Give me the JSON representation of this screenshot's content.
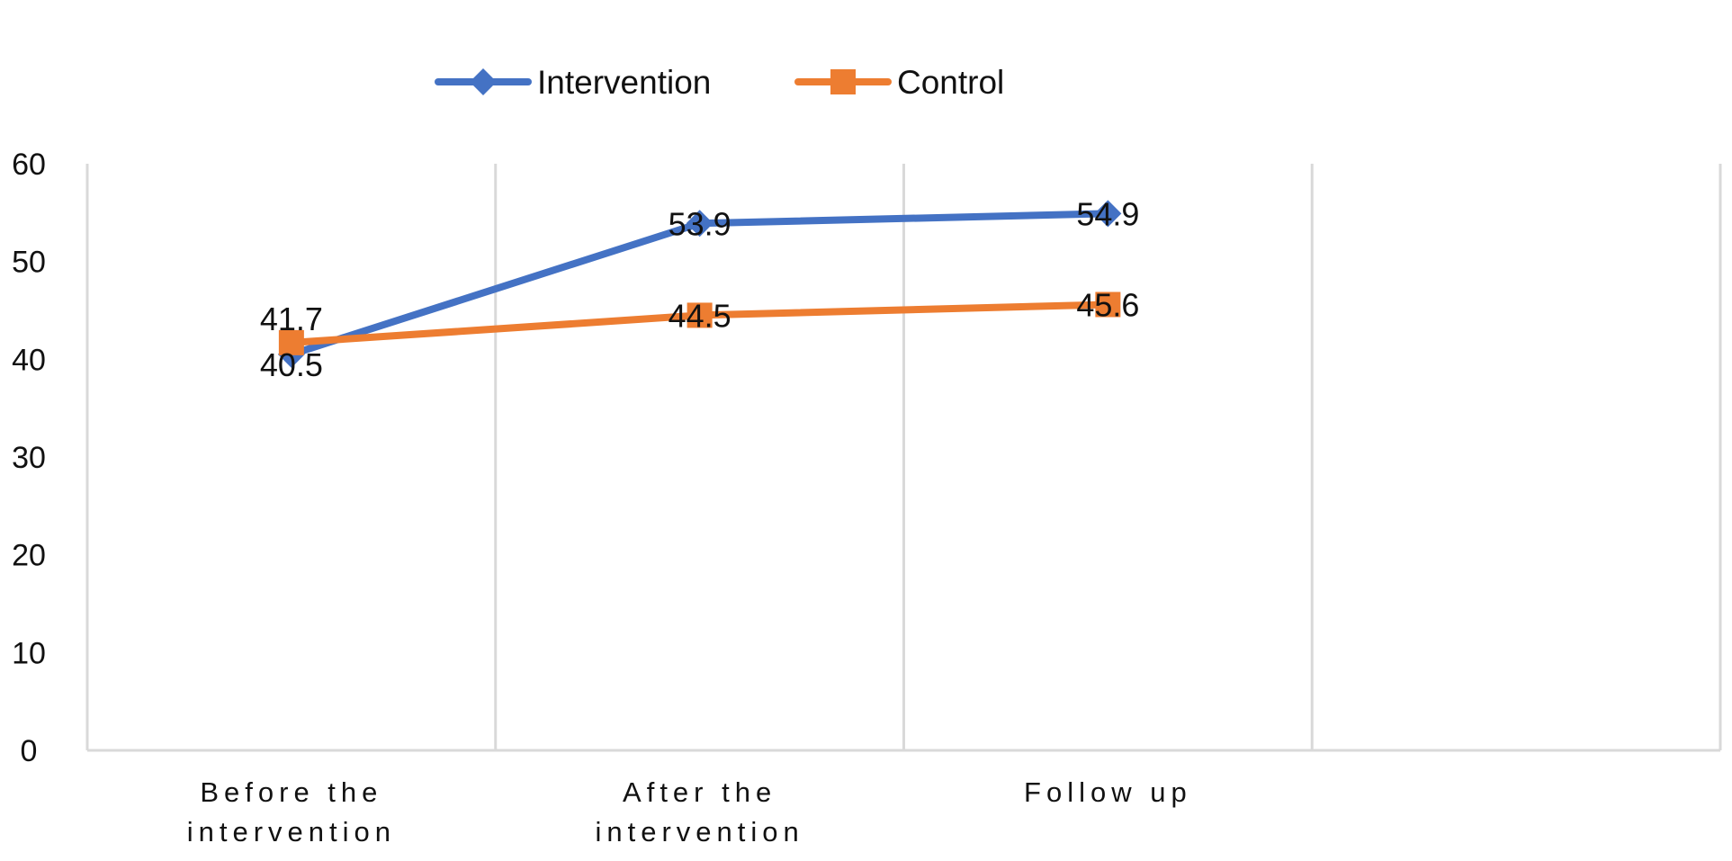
{
  "chart_data": {
    "type": "line",
    "categories": [
      [
        "Before the",
        "intervention"
      ],
      [
        "After the",
        "intervention"
      ],
      [
        "Follow up"
      ]
    ],
    "series": [
      {
        "name": "Intervention",
        "values": [
          40.5,
          53.9,
          54.9
        ],
        "labels": [
          "40.5",
          "53.9",
          "54.9"
        ],
        "color": "#4472C4",
        "marker": "diamond"
      },
      {
        "name": "Control",
        "values": [
          41.7,
          44.5,
          45.6
        ],
        "labels": [
          "41.7",
          "44.5",
          "45.6"
        ],
        "color": "#ED7D31",
        "marker": "square"
      }
    ],
    "y_ticks": [
      "0",
      "10",
      "20",
      "30",
      "40",
      "50",
      "60"
    ],
    "ylim": [
      0,
      60
    ],
    "grid": "vertical",
    "legend_position": "top"
  }
}
